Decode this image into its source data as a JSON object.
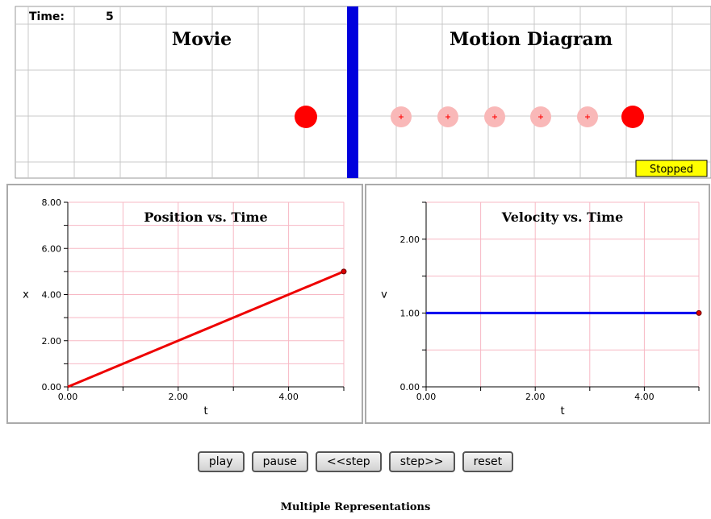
{
  "animation": {
    "time_label": "Time:",
    "time_value": "5",
    "movie_title": "Movie",
    "motion_title": "Motion Diagram",
    "status": "Stopped",
    "colors": {
      "divider": "#0000dd",
      "ball": "#ff0000",
      "ghost": "#f9b8b8",
      "status_bg": "#ffff00"
    }
  },
  "controls": {
    "play": "play",
    "pause": "pause",
    "step_back": "<<step",
    "step_forward": "step>>",
    "reset": "reset"
  },
  "caption": "Multiple Representations",
  "chart_data": [
    {
      "type": "line",
      "title": "Position vs. Time",
      "xlabel": "t",
      "ylabel": "x",
      "xlim": [
        0,
        5
      ],
      "ylim": [
        0,
        8
      ],
      "x_ticks": [
        "0.00",
        "2.00",
        "4.00"
      ],
      "y_ticks": [
        "0.00",
        "2.00",
        "4.00",
        "6.00",
        "8.00"
      ],
      "color": "#ee0000",
      "series": [
        {
          "x": [
            0,
            1,
            2,
            3,
            4,
            5
          ],
          "y": [
            0,
            1,
            2,
            3,
            4,
            5
          ]
        }
      ]
    },
    {
      "type": "line",
      "title": "Velocity vs. Time",
      "xlabel": "t",
      "ylabel": "v",
      "xlim": [
        0,
        5
      ],
      "ylim": [
        0,
        2.5
      ],
      "x_ticks": [
        "0.00",
        "2.00",
        "4.00"
      ],
      "y_ticks": [
        "0.00",
        "1.00",
        "2.00"
      ],
      "color": "#0000ee",
      "series": [
        {
          "x": [
            0,
            1,
            2,
            3,
            4,
            5
          ],
          "y": [
            1.0,
            1.0,
            1.0,
            1.0,
            1.0,
            1.0
          ]
        }
      ]
    }
  ]
}
